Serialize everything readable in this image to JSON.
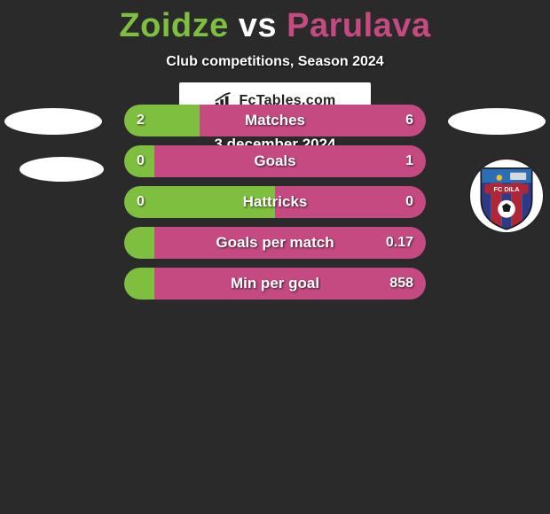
{
  "title": {
    "left": "Zoidze",
    "vs": "vs",
    "right": "Parulava",
    "left_color": "#7fbf3f",
    "right_color": "#c54a82"
  },
  "subtitle": "Club competitions, Season 2024",
  "colors": {
    "left_bar": "#7fbf3f",
    "right_bar": "#c54a82"
  },
  "rows": [
    {
      "label": "Matches",
      "left": "2",
      "right": "6",
      "left_pct": 25
    },
    {
      "label": "Goals",
      "left": "0",
      "right": "1",
      "left_pct": 10
    },
    {
      "label": "Hattricks",
      "left": "0",
      "right": "0",
      "left_pct": 50
    },
    {
      "label": "Goals per match",
      "left": "",
      "right": "0.17",
      "left_pct": 10
    },
    {
      "label": "Min per goal",
      "left": "",
      "right": "858",
      "left_pct": 10
    }
  ],
  "branding": {
    "text": "FcTables.com"
  },
  "footer_date": "3 december 2024",
  "club_badge": {
    "stripe_colors": [
      "#2b3b8a",
      "#b02637"
    ],
    "top_panel_color": "#2a6fb5",
    "ribbon_color": "#b02637",
    "ribbon_text": "FC DILA",
    "ball_color": "#ffffff"
  }
}
